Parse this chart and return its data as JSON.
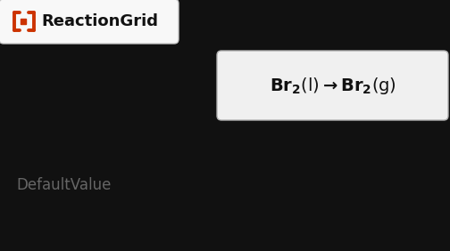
{
  "bg_color": "#111111",
  "header_box_bg": "#f8f8f8",
  "header_box_edge_color": "#c8c8c8",
  "header_bracket_color": "#cc3300",
  "header_text": "ReactionGrid",
  "header_text_color": "#111111",
  "reaction_box_bg": "#f0f0f0",
  "reaction_box_edge_color": "#b0b0b0",
  "reaction_text_color": "#111111",
  "reaction_phase_color": "#888888",
  "footer_text": "DefaultValue",
  "footer_text_color": "#666666",
  "fig_width": 5.04,
  "fig_height": 2.82,
  "dpi": 100
}
